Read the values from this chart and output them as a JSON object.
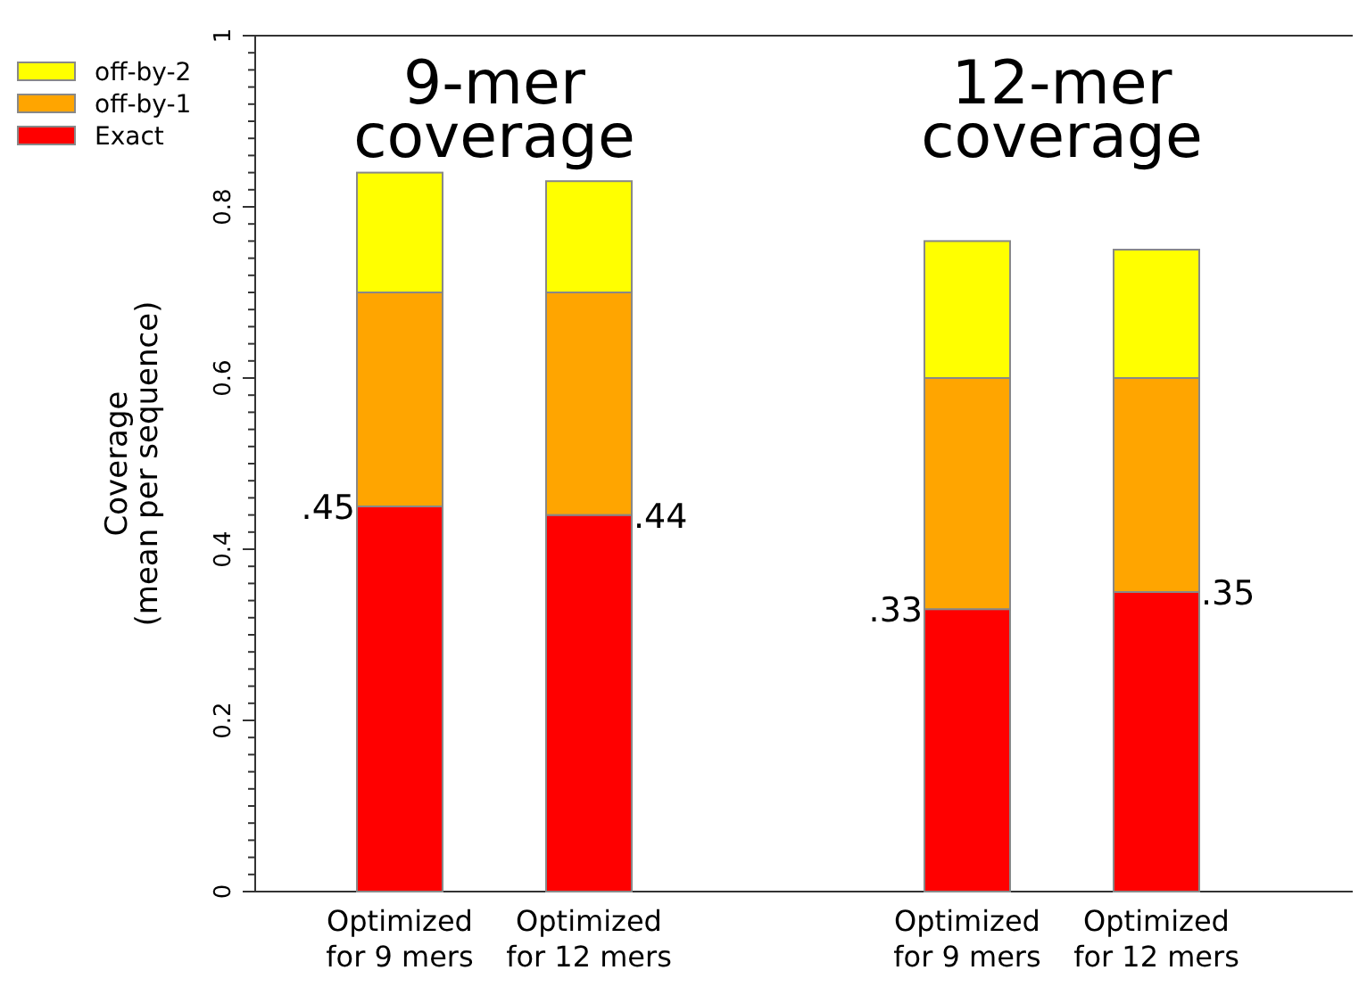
{
  "chart_data": {
    "type": "bar",
    "stacked": true,
    "ylabel": "Coverage\n(mean per sequence)",
    "categories": [
      "Optimized for 9 mers",
      "Optimized for 12 mers",
      null,
      "Optimized for 9 mers",
      "Optimized for 12 mers"
    ],
    "series": [
      {
        "name": "Exact",
        "color": "#ff0000",
        "values": [
          0.45,
          0.44,
          null,
          0.33,
          0.35
        ],
        "value_labels": [
          ".45",
          ".44",
          null,
          ".33",
          ".35"
        ]
      },
      {
        "name": "off-by-1",
        "color": "#ffa500",
        "values": [
          0.25,
          0.26,
          null,
          0.27,
          0.25
        ]
      },
      {
        "name": "off-by-2",
        "color": "#ffff00",
        "values": [
          0.14,
          0.13,
          null,
          0.16,
          0.15
        ]
      }
    ],
    "ylim": [
      0,
      1
    ],
    "yticks": [
      0,
      {
        "value": 0.02,
        "label": null
      },
      {
        "value": 0.04,
        "label": null
      },
      {
        "value": 0.06,
        "label": null
      },
      {
        "value": 0.08,
        "label": null
      },
      {
        "value": 0.1,
        "label": null
      },
      {
        "value": 0.12,
        "label": null
      },
      {
        "value": 0.14,
        "label": null
      },
      {
        "value": 0.16,
        "label": null
      },
      {
        "value": 0.18,
        "label": null
      },
      0.2,
      {
        "value": 0.22,
        "label": null
      },
      {
        "value": 0.24,
        "label": null
      },
      {
        "value": 0.26,
        "label": null
      },
      {
        "value": 0.28,
        "label": null
      },
      {
        "value": 0.3,
        "label": null
      },
      {
        "value": 0.32,
        "label": null
      },
      {
        "value": 0.34,
        "label": null
      },
      {
        "value": 0.36,
        "label": null
      },
      {
        "value": 0.38,
        "label": null
      },
      0.4,
      {
        "value": 0.42,
        "label": null
      },
      {
        "value": 0.44,
        "label": null
      },
      {
        "value": 0.46,
        "label": null
      },
      {
        "value": 0.48,
        "label": null
      },
      {
        "value": 0.5,
        "label": null
      },
      {
        "value": 0.52,
        "label": null
      },
      {
        "value": 0.54,
        "label": null
      },
      {
        "value": 0.56,
        "label": null
      },
      {
        "value": 0.58,
        "label": null
      },
      0.6,
      {
        "value": 0.62,
        "label": null
      },
      {
        "value": 0.64,
        "label": null
      },
      {
        "value": 0.66,
        "label": null
      },
      {
        "value": 0.68,
        "label": null
      },
      {
        "value": 0.7,
        "label": null
      },
      {
        "value": 0.72,
        "label": null
      },
      {
        "value": 0.74,
        "label": null
      },
      {
        "value": 0.76,
        "label": null
      },
      {
        "value": 0.78,
        "label": null
      },
      0.8,
      {
        "value": 0.82,
        "label": null
      },
      {
        "value": 0.84,
        "label": null
      },
      {
        "value": 0.86,
        "label": null
      },
      {
        "value": 0.88,
        "label": null
      },
      {
        "value": 0.9,
        "label": null
      },
      {
        "value": 0.92,
        "label": null
      },
      {
        "value": 0.94,
        "label": null
      },
      {
        "value": 0.96,
        "label": null
      },
      {
        "value": 0.98,
        "label": null
      },
      1
    ],
    "annotations": [
      "9-mer coverage",
      "12-mer coverage"
    ],
    "legend": "top left",
    "grid": false
  }
}
